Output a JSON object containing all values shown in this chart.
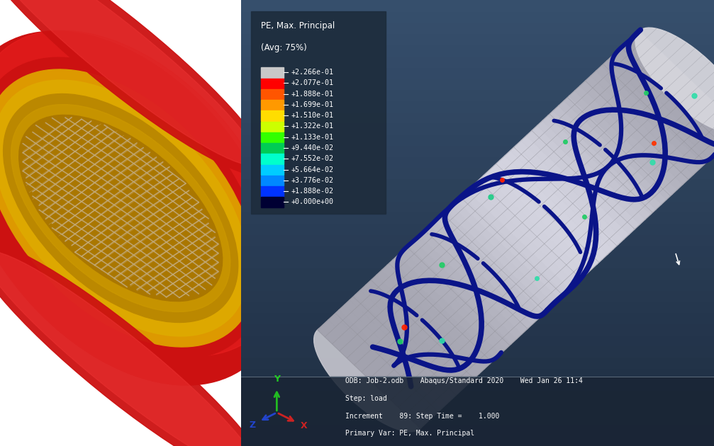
{
  "legend_title_line1": "PE, Max. Principal",
  "legend_title_line2": "(Avg: 75%)",
  "legend_values": [
    "+2.266e-01",
    "+2.077e-01",
    "+1.888e-01",
    "+1.699e-01",
    "+1.510e-01",
    "+1.322e-01",
    "+1.133e-01",
    "+9.440e-02",
    "+7.552e-02",
    "+5.664e-02",
    "+3.776e-02",
    "+1.888e-02",
    "+0.000e+00"
  ],
  "legend_colors": [
    "#c8c8c8",
    "#ff0000",
    "#ff5500",
    "#ff9900",
    "#ffdd00",
    "#ccff00",
    "#33ff00",
    "#00cc55",
    "#00ffcc",
    "#00ccff",
    "#0088ff",
    "#0033ff",
    "#000033"
  ],
  "right_bg_top": "#2a3a4e",
  "right_bg_bottom": "#3a4f65",
  "legend_box_bg": "#1e2d3d",
  "legend_box_border": "#8090a0",
  "status_line1": "ODB: Job-2.odb    Abaqus/Standard 2020    Wed Jan 26 11:4",
  "status_line2": "Step: load",
  "status_line3": "Increment    89: Step Time =    1.000",
  "status_line4": "Primary Var: PE, Max. Principal",
  "cyl_color_light": "#e8e8ec",
  "cyl_color_dark": "#b8b8c0",
  "grid_color": "#909098",
  "stent_color": "#0a1488",
  "stent_accent_green": "#22cc44",
  "stent_accent_red": "#ff2200",
  "stent_accent_cyan": "#00ccff"
}
